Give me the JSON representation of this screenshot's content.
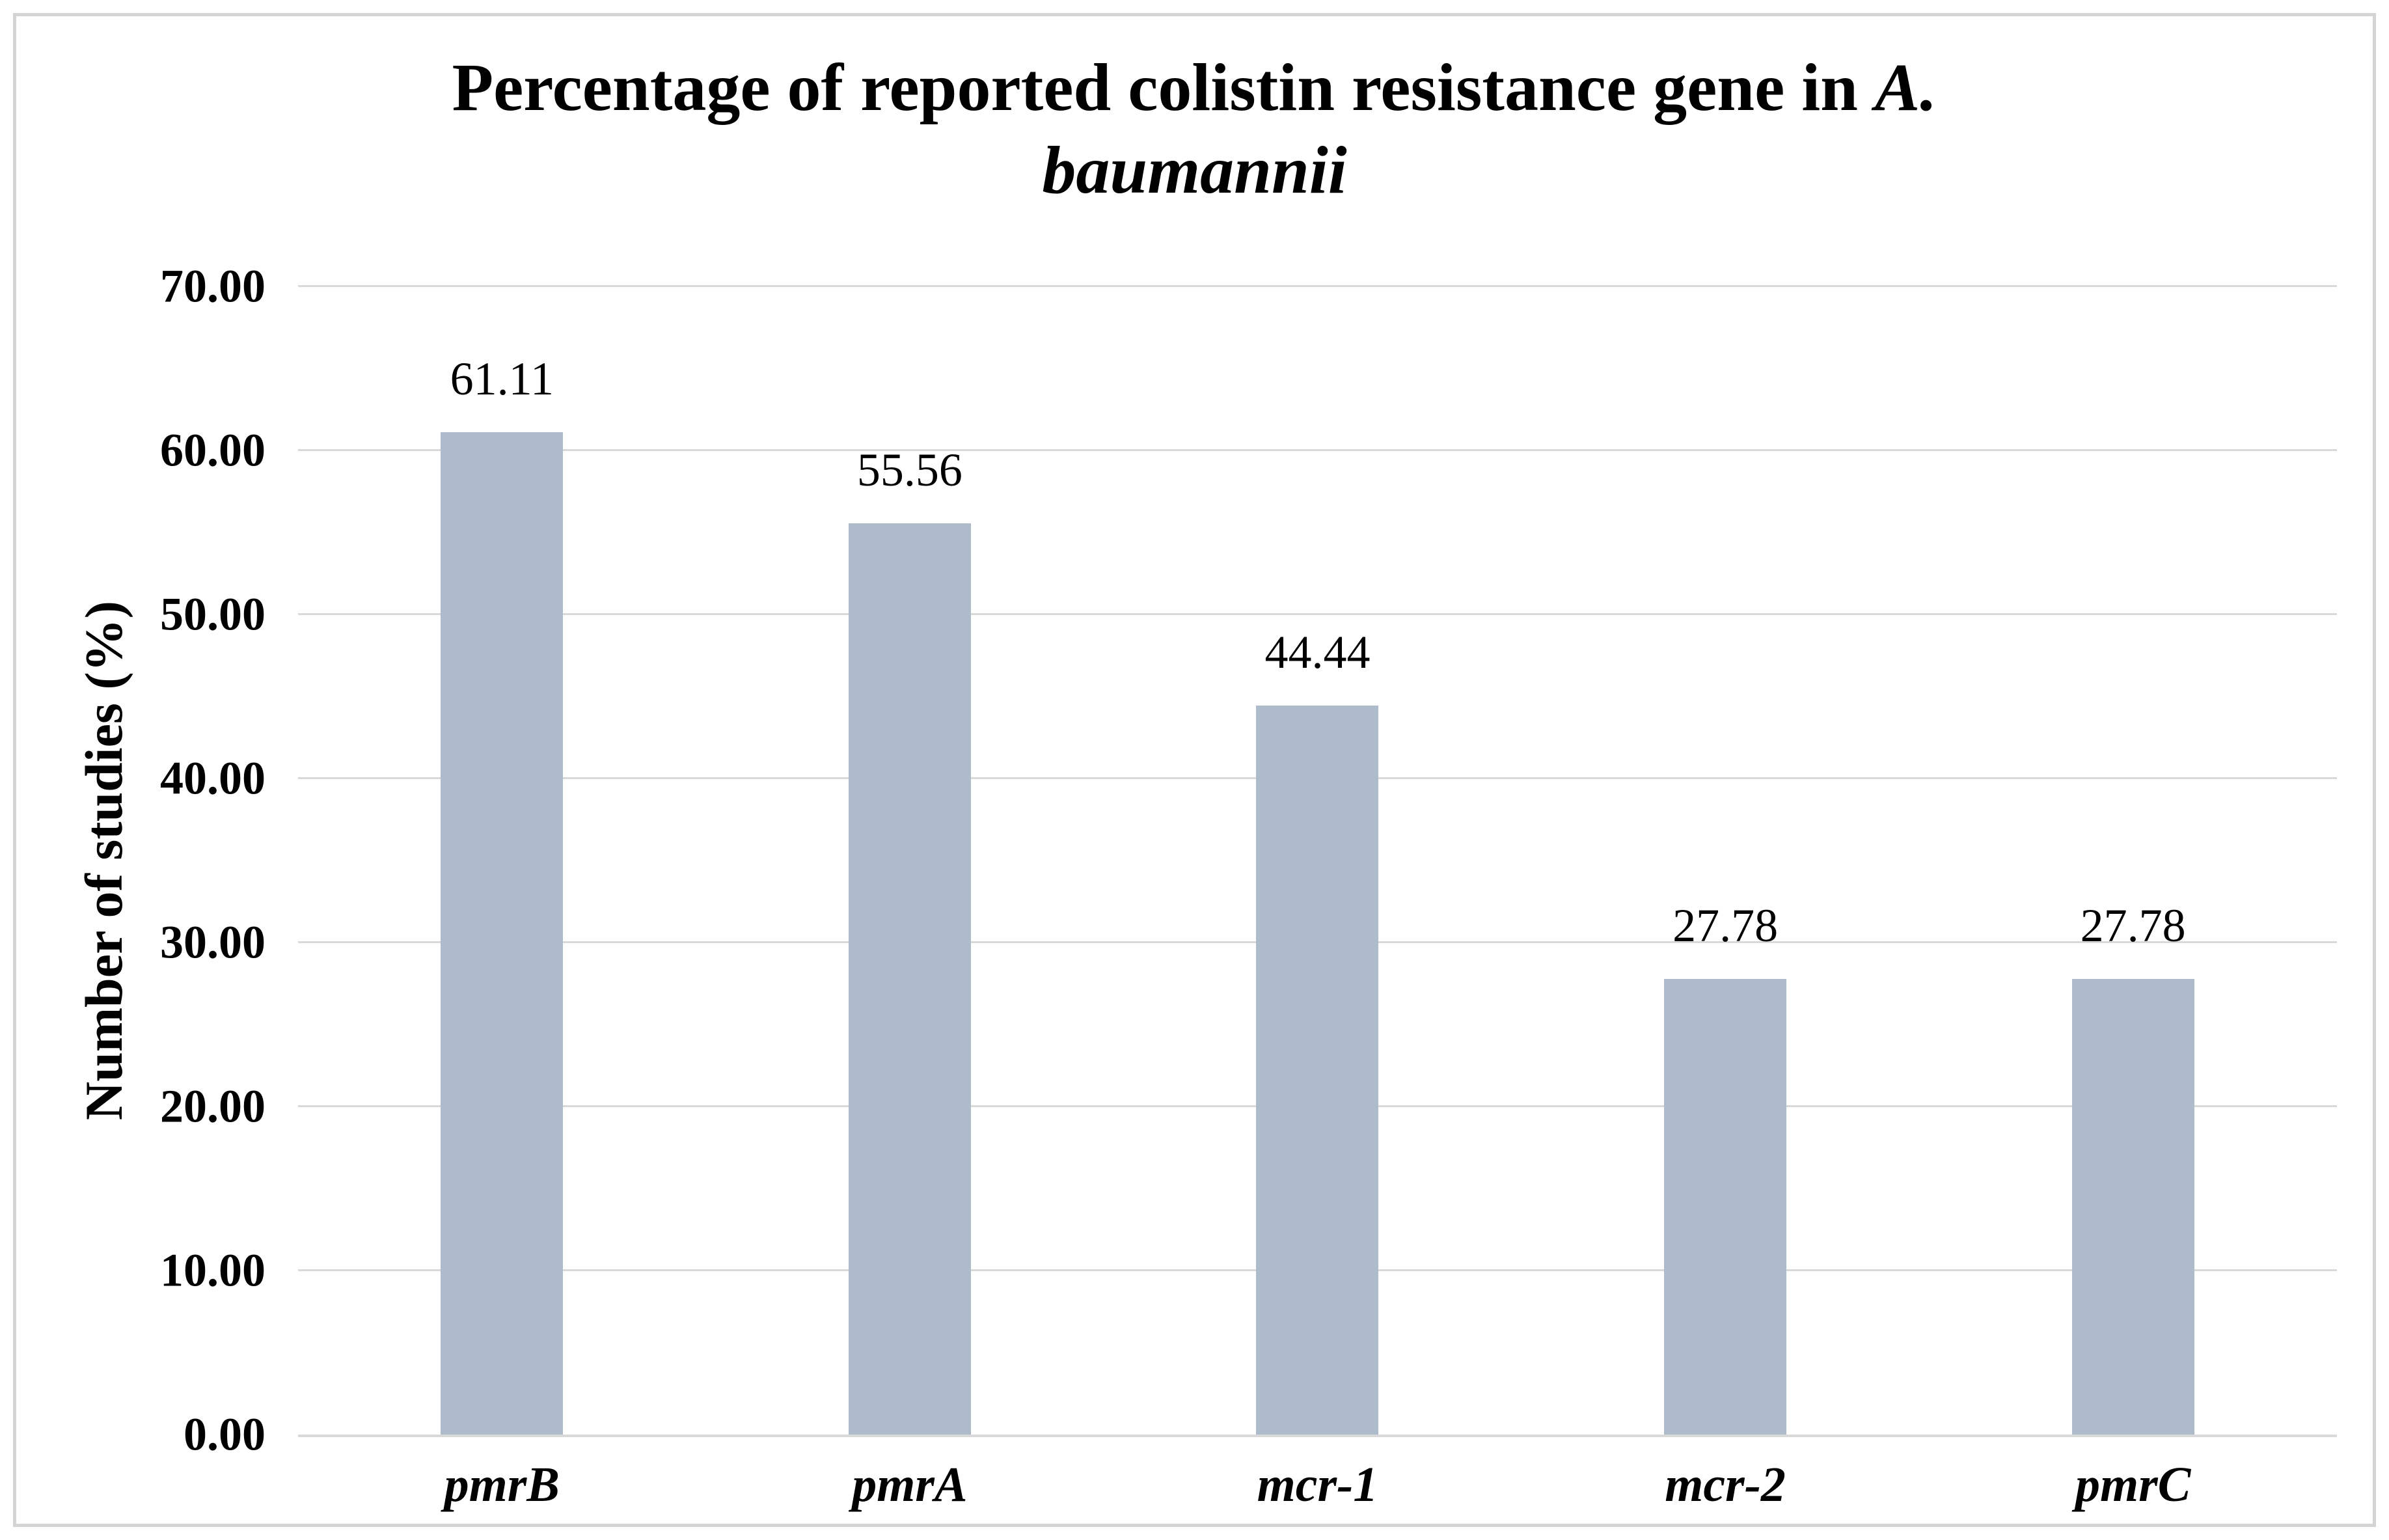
{
  "figure": {
    "title": {
      "prefix": "Percentage of reported colistin resistance gene in ",
      "species_line1": "A.",
      "species_line2": "baumannii"
    }
  },
  "chart_data": {
    "type": "bar",
    "title": "Percentage of reported colistin resistance gene in A. baumannii",
    "title_italic_part": "A. baumannii",
    "categories": [
      "pmrB",
      "pmrA",
      "mcr-1",
      "mcr-2",
      "pmrC"
    ],
    "values": [
      61.11,
      55.56,
      44.44,
      27.78,
      27.78
    ],
    "data_labels": [
      "61.11",
      "55.56",
      "44.44",
      "27.78",
      "27.78"
    ],
    "xlabel": "",
    "ylabel": "Number of studies (%)",
    "ylim": [
      0,
      70
    ],
    "yticks": [
      0,
      10,
      20,
      30,
      40,
      50,
      60,
      70
    ],
    "ytick_labels": [
      "0.00",
      "10.00",
      "20.00",
      "30.00",
      "40.00",
      "50.00",
      "60.00",
      "70.00"
    ],
    "grid": "horizontal-only",
    "legend": "none",
    "bar_color": "#AEBBCB",
    "gridline_color": "#D9D9D9",
    "axis_line_color": "#D9D9D9",
    "frame_border_color": "#D4D4D4",
    "text_color": "#000000"
  }
}
